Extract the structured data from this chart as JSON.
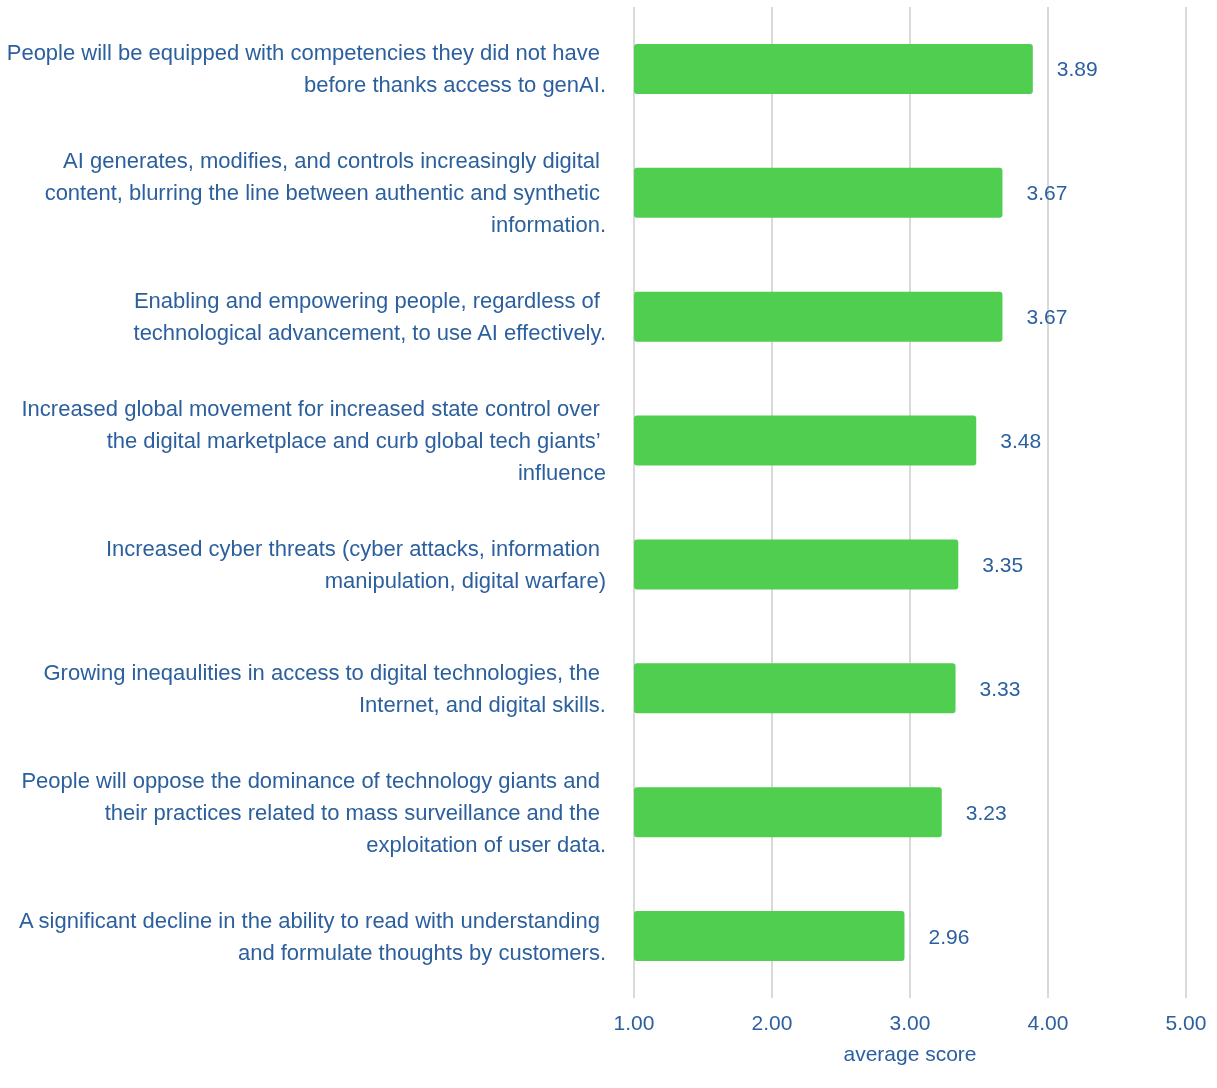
{
  "chart_data": {
    "type": "bar",
    "orientation": "horizontal",
    "xlabel": "average score",
    "categories": [
      "People will be equipped with competencies they did not have before thanks access to genAI.",
      "AI generates, modifies, and controls increasingly digital content, blurring the line between authentic and synthetic information.",
      "Enabling and empowering people, regardless of technological advancement, to use AI effectively.",
      "Increased global movement for increased state control over the digital marketplace and curb global tech giants’ influence",
      "Increased cyber threats (cyber attacks, information manipulation, digital warfare)",
      "Growing ineqaulities in access to digital technologies, the Internet, and digital skills.",
      "People will oppose the dominance of technology giants and their practices related to mass surveillance and the exploitation of user data.",
      "A significant decline in the ability to read with understanding and formulate thoughts by customers."
    ],
    "values": [
      3.89,
      3.67,
      3.67,
      3.48,
      3.35,
      3.33,
      3.23,
      2.96
    ],
    "color": "#4fce4f",
    "data_labels": true,
    "xlim": [
      1,
      5
    ],
    "xticks": [
      {
        "value": 1,
        "label": "1.00"
      },
      {
        "value": 2,
        "label": "2.00"
      },
      {
        "value": 3,
        "label": "3.00"
      },
      {
        "value": 4,
        "label": "4.00"
      },
      {
        "value": 5,
        "label": "5.00"
      }
    ],
    "grid": "x"
  }
}
